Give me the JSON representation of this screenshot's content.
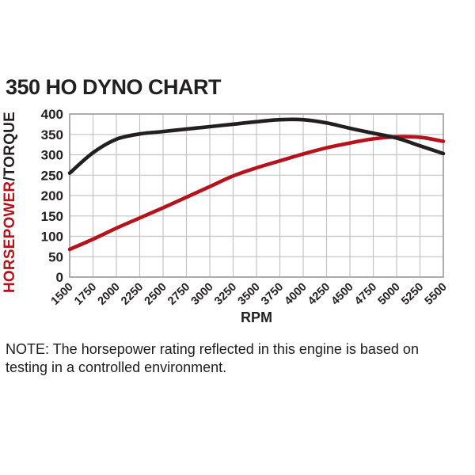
{
  "title": "350 HO DYNO CHART",
  "y_axis_label": {
    "horsepower": "HORSEPOWER",
    "torque": "/TORQUE"
  },
  "x_axis_label": "RPM",
  "note": {
    "line1": "NOTE: The horsepower rating reflected in this engine is based on",
    "line2": "testing in a controlled environment."
  },
  "colors": {
    "red": "#b5121c",
    "black": "#231f20",
    "grid": "#c3c3c3",
    "border": "#9c9c9c",
    "text": "#231f20"
  },
  "chart_data": {
    "type": "line",
    "title": "350 HO DYNO CHART",
    "xlabel": "RPM",
    "ylabel": "HORSEPOWER/TORQUE",
    "x": [
      1500,
      1750,
      2000,
      2250,
      2500,
      2750,
      3000,
      3250,
      3500,
      3750,
      4000,
      4250,
      4500,
      4750,
      5000,
      5250,
      5500
    ],
    "x_ticks": [
      1500,
      1750,
      2000,
      2250,
      2500,
      2750,
      3000,
      3250,
      3500,
      3750,
      4000,
      4250,
      4500,
      4750,
      5000,
      5250,
      5500
    ],
    "y_ticks": [
      0,
      50,
      100,
      150,
      200,
      250,
      300,
      350,
      400
    ],
    "ylim": [
      0,
      400
    ],
    "xlim": [
      1500,
      5500
    ],
    "grid": true,
    "legend": "none",
    "series": [
      {
        "name": "Horsepower",
        "color": "#b5121c",
        "values": [
          68,
          93,
          120,
          145,
          170,
          196,
          222,
          248,
          268,
          285,
          302,
          317,
          329,
          339,
          344,
          343,
          333
        ]
      },
      {
        "name": "Torque",
        "color": "#231f20",
        "values": [
          255,
          305,
          338,
          351,
          357,
          363,
          369,
          375,
          381,
          386,
          386,
          378,
          365,
          353,
          341,
          322,
          303
        ]
      }
    ]
  }
}
